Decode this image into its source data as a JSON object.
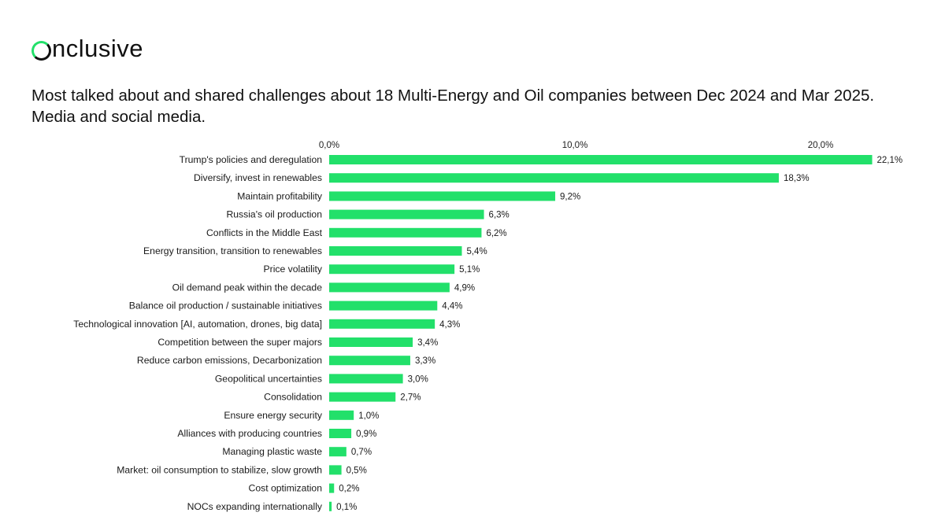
{
  "brand": {
    "name": "nclusive",
    "accent_color": "#22e06a"
  },
  "chart_data": {
    "type": "bar",
    "orientation": "horizontal",
    "title": "Most talked about and shared challenges about 18 Multi-Energy and Oil companies between Dec 2024 and Mar 2025. Media and social media.",
    "xlim": [
      0,
      22.1
    ],
    "ticks": [
      {
        "value": 0,
        "label": "0,0%"
      },
      {
        "value": 10,
        "label": "10,0%"
      },
      {
        "value": 20,
        "label": "20,0%"
      }
    ],
    "grid": false,
    "bar_color": "#22e06a",
    "categories": [
      "Trump's policies and deregulation",
      "Diversify, invest in renewables",
      "Maintain profitability",
      "Russia's oil production",
      "Conflicts in the Middle East",
      "Energy transition, transition to renewables",
      "Price volatility",
      "Oil demand peak within the decade",
      "Balance oil production / sustainable initiatives",
      "Technological innovation [AI, automation, drones, big data]",
      "Competition between the super majors",
      "Reduce carbon emissions, Decarbonization",
      "Geopolitical uncertainties",
      "Consolidation",
      "Ensure energy security",
      "Alliances with producing countries",
      "Managing plastic waste",
      "Market: oil consumption to stabilize, slow growth",
      "Cost optimization",
      "NOCs expanding internationally"
    ],
    "values": [
      22.1,
      18.3,
      9.2,
      6.3,
      6.2,
      5.4,
      5.1,
      4.9,
      4.4,
      4.3,
      3.4,
      3.3,
      3.0,
      2.7,
      1.0,
      0.9,
      0.7,
      0.5,
      0.2,
      0.1
    ],
    "value_labels": [
      "22,1%",
      "18,3%",
      "9,2%",
      "6,3%",
      "6,2%",
      "5,4%",
      "5,1%",
      "4,9%",
      "4,4%",
      "4,3%",
      "3,4%",
      "3,3%",
      "3,0%",
      "2,7%",
      "1,0%",
      "0,9%",
      "0,7%",
      "0,5%",
      "0,2%",
      "0,1%"
    ]
  }
}
